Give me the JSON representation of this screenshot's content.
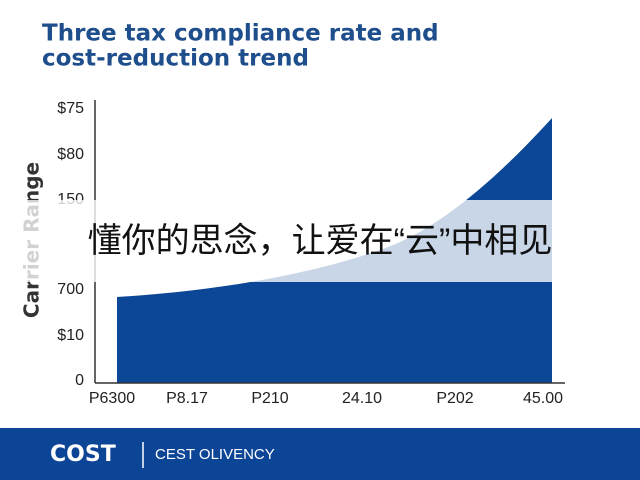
{
  "title_lines": [
    "Three tax compliance rate and",
    "cost-reduction trend"
  ],
  "y_axis_title": "Carrier Range",
  "y_labels": [
    "$75",
    "$80",
    "150",
    "700",
    "$10",
    "0"
  ],
  "x_labels": [
    "P6300",
    "P8.17",
    "P210",
    "24.10",
    "P202",
    "45.00"
  ],
  "banner": "懂你的思念，让爱在“云”中相见",
  "footer": {
    "brand": "COST",
    "tagline": "CEST OLIVENCY"
  }
}
